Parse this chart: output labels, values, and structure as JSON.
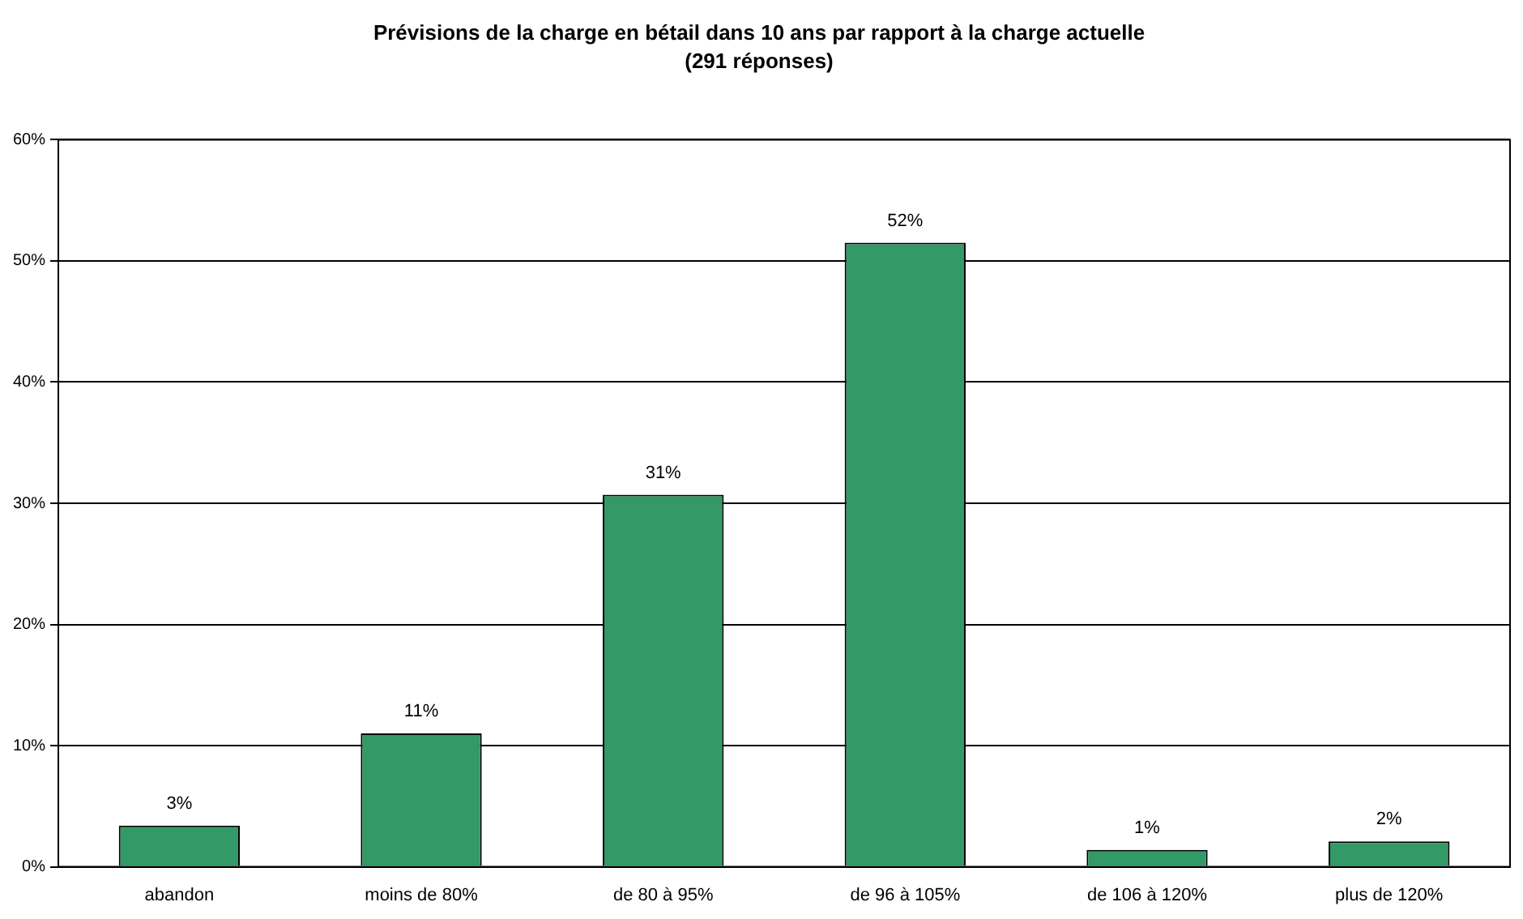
{
  "chart_data": {
    "type": "bar",
    "title": "Prévisions de la charge en bétail dans 10 ans par rapport à la charge actuelle",
    "subtitle": "(291 réponses)",
    "categories": [
      "abandon",
      "moins de 80%",
      "de 80 à 95%",
      "de 96 à 105%",
      "de 106 à 120%",
      "plus de 120%"
    ],
    "values": [
      3.4,
      11,
      30.7,
      51.5,
      1.4,
      2.1
    ],
    "value_labels": [
      "3%",
      "11%",
      "31%",
      "52%",
      "1%",
      "2%"
    ],
    "color": "#339966",
    "ylim": [
      0,
      60
    ],
    "yticks": [
      {
        "value": 0,
        "label": "0%"
      },
      {
        "value": 10,
        "label": "10%"
      },
      {
        "value": 20,
        "label": "20%"
      },
      {
        "value": 30,
        "label": "30%"
      },
      {
        "value": 40,
        "label": "40%"
      },
      {
        "value": 50,
        "label": "50%"
      },
      {
        "value": 60,
        "label": "60%"
      }
    ],
    "grid": "y",
    "legend": false
  }
}
